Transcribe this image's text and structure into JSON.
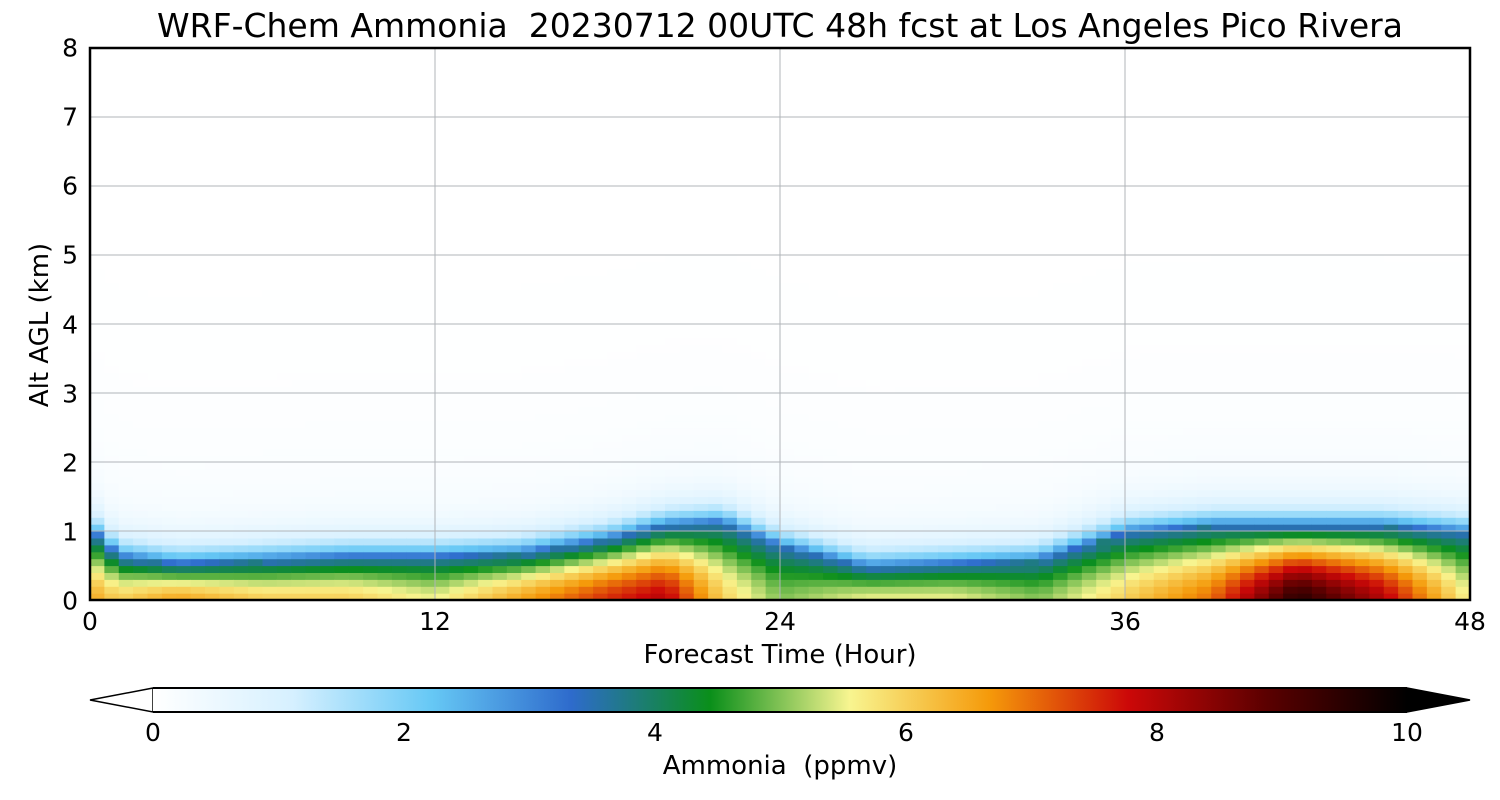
{
  "chart_data": {
    "type": "heatmap",
    "title": "WRF-Chem Ammonia  20230712 00UTC 48h fcst at Los Angeles Pico Rivera",
    "xlabel": "Forecast Time (Hour)",
    "ylabel": "Alt AGL (km)",
    "xlim": [
      0,
      48
    ],
    "ylim": [
      0,
      8
    ],
    "x_ticks": [
      "0",
      "12",
      "24",
      "36",
      "48"
    ],
    "y_ticks": [
      "0",
      "1",
      "2",
      "3",
      "4",
      "5",
      "6",
      "7",
      "8"
    ],
    "grid": true,
    "x_hours": [
      0,
      1,
      3,
      6,
      9,
      12,
      15,
      18,
      20,
      22,
      24,
      27,
      30,
      33,
      36,
      39,
      42,
      45,
      48
    ],
    "boundary_layer_top_km": [
      1.0,
      0.6,
      0.5,
      0.55,
      0.6,
      0.6,
      0.65,
      0.85,
      1.05,
      1.1,
      0.75,
      0.45,
      0.5,
      0.55,
      0.95,
      1.05,
      1.05,
      1.05,
      0.95
    ],
    "surface_max_ppmv": [
      6.5,
      6.0,
      6.5,
      6.0,
      6.0,
      5.5,
      6.5,
      7.5,
      8.0,
      6.0,
      5.0,
      5.5,
      5.5,
      5.0,
      6.0,
      7.0,
      9.5,
      8.0,
      5.5
    ],
    "colorbar": {
      "label": "Ammonia  (ppmv)",
      "min": 0,
      "max": 10,
      "ticks": [
        "0",
        "2",
        "4",
        "6",
        "8",
        "10"
      ],
      "extend": "both",
      "colors": [
        "#ffffff",
        "#d6f0ff",
        "#66c8f5",
        "#2e6bcc",
        "#0a8f1a",
        "#f8f590",
        "#f59a0a",
        "#cc0808",
        "#5a0000",
        "#000000"
      ]
    }
  }
}
